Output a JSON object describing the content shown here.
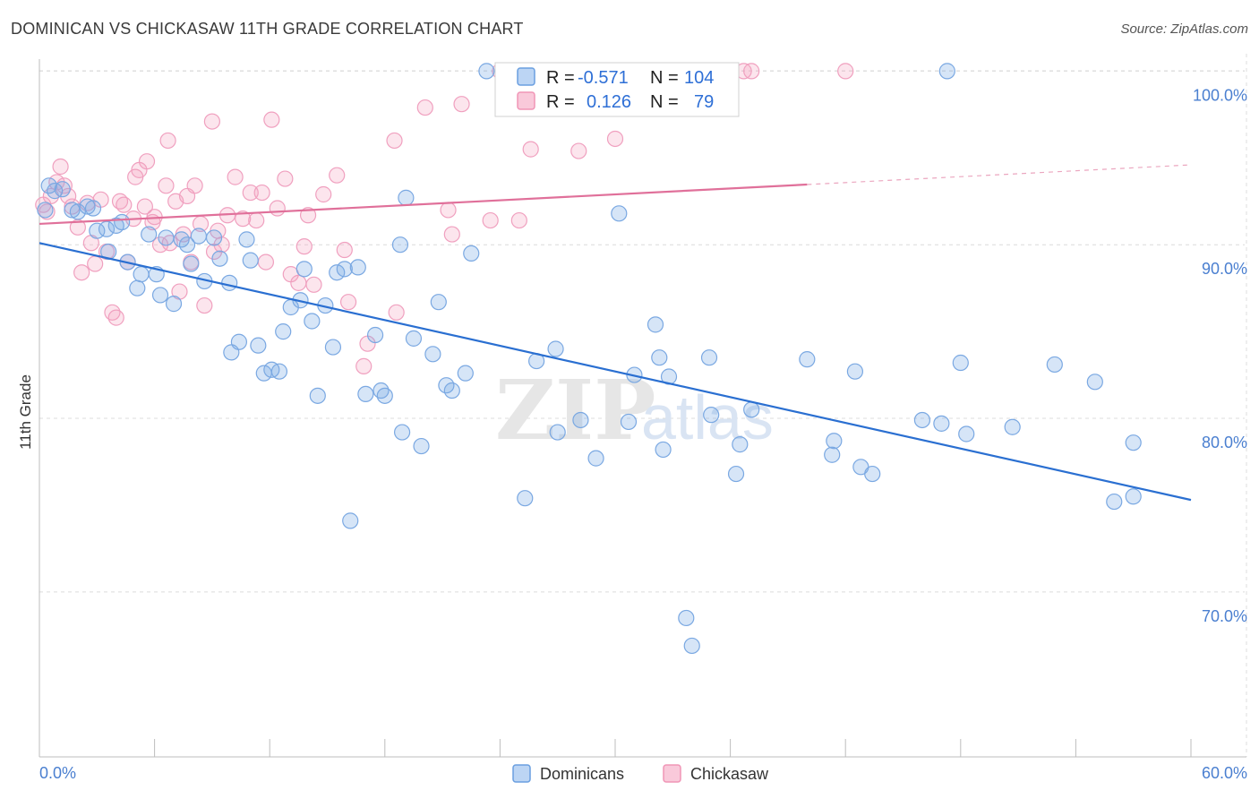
{
  "title": "DOMINICAN VS CHICKASAW 11TH GRADE CORRELATION CHART",
  "source": "Source: ZipAtlas.com",
  "watermark": {
    "zip": "ZIP",
    "atlas": "atlas"
  },
  "colors": {
    "blue": "#5b9be0",
    "pink": "#f08cb0",
    "blue_line": "#2a6fd1",
    "pink_line": "#e0709a",
    "tick": "#4a7fd0"
  },
  "legend_box": {
    "rows": [
      {
        "r_label": "R =",
        "r_value": "-0.571",
        "n_label": "N =",
        "n_value": "104"
      },
      {
        "r_label": "R =",
        "r_value": "0.126",
        "n_label": "N =",
        "n_value": "79"
      }
    ]
  },
  "chart_data": {
    "type": "scatter",
    "title": "DOMINICAN VS CHICKASAW 11TH GRADE CORRELATION CHART",
    "xlabel": "",
    "ylabel": "11th Grade",
    "xlim": [
      0,
      60
    ],
    "ylim": [
      60.5,
      101
    ],
    "x_tick_labels": [
      "0.0%",
      "60.0%"
    ],
    "y_ticks": [
      70,
      80,
      90,
      100
    ],
    "y_tick_labels": [
      "70.0%",
      "80.0%",
      "90.0%",
      "100.0%"
    ],
    "grid": true,
    "legend_position": "bottom-center",
    "series": [
      {
        "name": "Dominicans",
        "color": "#5b9be0",
        "r": -0.571,
        "n": 104,
        "trend": {
          "x": [
            0,
            60
          ],
          "y": [
            90.1,
            75.3
          ]
        },
        "points": [
          [
            0.3,
            92.0
          ],
          [
            0.5,
            93.4
          ],
          [
            0.8,
            93.1
          ],
          [
            1.2,
            93.2
          ],
          [
            1.7,
            92.0
          ],
          [
            2.0,
            91.9
          ],
          [
            2.5,
            92.2
          ],
          [
            2.8,
            92.1
          ],
          [
            3.0,
            90.8
          ],
          [
            3.5,
            90.9
          ],
          [
            3.6,
            89.6
          ],
          [
            4.0,
            91.1
          ],
          [
            4.3,
            91.3
          ],
          [
            4.6,
            89.0
          ],
          [
            5.1,
            87.5
          ],
          [
            5.3,
            88.3
          ],
          [
            5.7,
            90.6
          ],
          [
            6.1,
            88.3
          ],
          [
            6.3,
            87.1
          ],
          [
            6.6,
            90.4
          ],
          [
            7.0,
            86.6
          ],
          [
            7.4,
            90.3
          ],
          [
            7.7,
            90.0
          ],
          [
            7.9,
            88.9
          ],
          [
            8.3,
            90.5
          ],
          [
            8.6,
            87.9
          ],
          [
            9.1,
            90.4
          ],
          [
            9.4,
            89.2
          ],
          [
            9.9,
            87.8
          ],
          [
            10.0,
            83.8
          ],
          [
            10.4,
            84.4
          ],
          [
            10.8,
            90.3
          ],
          [
            11.0,
            89.1
          ],
          [
            11.4,
            84.2
          ],
          [
            11.7,
            82.6
          ],
          [
            12.1,
            82.8
          ],
          [
            12.5,
            82.7
          ],
          [
            12.7,
            85.0
          ],
          [
            13.1,
            86.4
          ],
          [
            13.6,
            86.8
          ],
          [
            13.8,
            88.6
          ],
          [
            14.2,
            85.6
          ],
          [
            14.5,
            81.3
          ],
          [
            14.9,
            86.5
          ],
          [
            15.3,
            84.1
          ],
          [
            15.5,
            88.4
          ],
          [
            15.9,
            88.6
          ],
          [
            16.2,
            74.1
          ],
          [
            16.6,
            88.7
          ],
          [
            17.0,
            81.4
          ],
          [
            17.5,
            84.8
          ],
          [
            17.8,
            81.6
          ],
          [
            18.0,
            81.3
          ],
          [
            18.8,
            90.0
          ],
          [
            18.9,
            79.2
          ],
          [
            19.1,
            92.7
          ],
          [
            19.5,
            84.6
          ],
          [
            19.9,
            78.4
          ],
          [
            20.5,
            83.7
          ],
          [
            20.8,
            86.7
          ],
          [
            21.2,
            81.9
          ],
          [
            21.5,
            81.6
          ],
          [
            22.2,
            82.6
          ],
          [
            22.5,
            89.5
          ],
          [
            23.3,
            100.0
          ],
          [
            24.3,
            100.0
          ],
          [
            25.3,
            75.4
          ],
          [
            25.9,
            83.3
          ],
          [
            26.9,
            84.0
          ],
          [
            27.0,
            79.2
          ],
          [
            28.2,
            79.9
          ],
          [
            28.7,
            100.0
          ],
          [
            29.0,
            77.7
          ],
          [
            30.2,
            91.8
          ],
          [
            30.7,
            79.8
          ],
          [
            31.0,
            82.5
          ],
          [
            32.1,
            85.4
          ],
          [
            32.3,
            83.5
          ],
          [
            32.5,
            78.2
          ],
          [
            32.8,
            82.4
          ],
          [
            33.7,
            68.5
          ],
          [
            34.0,
            66.9
          ],
          [
            34.9,
            83.5
          ],
          [
            35.0,
            80.2
          ],
          [
            36.3,
            76.8
          ],
          [
            36.5,
            78.5
          ],
          [
            37.1,
            80.5
          ],
          [
            40.0,
            83.4
          ],
          [
            41.3,
            77.9
          ],
          [
            41.4,
            78.7
          ],
          [
            42.5,
            82.7
          ],
          [
            42.8,
            77.2
          ],
          [
            43.4,
            76.8
          ],
          [
            46.0,
            79.9
          ],
          [
            47.0,
            79.7
          ],
          [
            47.3,
            100.0
          ],
          [
            48.0,
            83.2
          ],
          [
            48.3,
            79.1
          ],
          [
            50.7,
            79.5
          ],
          [
            52.9,
            83.1
          ],
          [
            55.0,
            82.1
          ],
          [
            56.0,
            75.2
          ],
          [
            57.0,
            78.6
          ],
          [
            63.0,
            75.5
          ]
        ]
      },
      {
        "name": "Chickasaw",
        "color": "#f08cb0",
        "r": 0.126,
        "n": 79,
        "trend": {
          "x": [
            0,
            60
          ],
          "y": [
            91.2,
            94.6
          ]
        },
        "points": [
          [
            0.2,
            92.3
          ],
          [
            0.4,
            91.9
          ],
          [
            0.6,
            92.8
          ],
          [
            0.9,
            93.6
          ],
          [
            1.1,
            94.5
          ],
          [
            1.3,
            93.4
          ],
          [
            1.5,
            92.8
          ],
          [
            1.7,
            92.2
          ],
          [
            2.0,
            91.0
          ],
          [
            2.2,
            88.4
          ],
          [
            2.5,
            92.4
          ],
          [
            2.7,
            90.1
          ],
          [
            2.9,
            88.9
          ],
          [
            3.2,
            92.6
          ],
          [
            3.5,
            89.6
          ],
          [
            3.8,
            86.1
          ],
          [
            4.0,
            85.8
          ],
          [
            4.2,
            92.5
          ],
          [
            4.4,
            92.3
          ],
          [
            4.6,
            89.0
          ],
          [
            4.9,
            91.5
          ],
          [
            5.0,
            93.9
          ],
          [
            5.2,
            94.3
          ],
          [
            5.5,
            92.2
          ],
          [
            5.6,
            94.8
          ],
          [
            5.9,
            91.3
          ],
          [
            6.0,
            91.6
          ],
          [
            6.3,
            90.0
          ],
          [
            6.6,
            93.4
          ],
          [
            6.7,
            96.0
          ],
          [
            6.8,
            90.1
          ],
          [
            7.1,
            92.5
          ],
          [
            7.3,
            87.3
          ],
          [
            7.5,
            90.6
          ],
          [
            7.7,
            92.8
          ],
          [
            7.9,
            89.0
          ],
          [
            8.1,
            93.4
          ],
          [
            8.4,
            91.2
          ],
          [
            8.6,
            86.5
          ],
          [
            9.0,
            97.1
          ],
          [
            9.1,
            89.6
          ],
          [
            9.3,
            90.8
          ],
          [
            9.5,
            90.0
          ],
          [
            9.8,
            91.7
          ],
          [
            10.2,
            93.9
          ],
          [
            10.6,
            91.5
          ],
          [
            11.0,
            93.0
          ],
          [
            11.3,
            91.4
          ],
          [
            11.6,
            93.0
          ],
          [
            11.8,
            89.0
          ],
          [
            12.1,
            97.2
          ],
          [
            12.4,
            92.1
          ],
          [
            12.8,
            93.8
          ],
          [
            13.1,
            88.3
          ],
          [
            13.5,
            87.8
          ],
          [
            13.8,
            89.9
          ],
          [
            14.0,
            91.7
          ],
          [
            14.3,
            87.7
          ],
          [
            14.8,
            92.9
          ],
          [
            15.5,
            94.0
          ],
          [
            15.9,
            89.7
          ],
          [
            16.1,
            86.7
          ],
          [
            16.9,
            83.0
          ],
          [
            17.1,
            84.3
          ],
          [
            18.5,
            96.0
          ],
          [
            18.6,
            86.1
          ],
          [
            20.1,
            97.9
          ],
          [
            21.3,
            92.0
          ],
          [
            21.5,
            90.6
          ],
          [
            22.0,
            98.1
          ],
          [
            23.5,
            91.4
          ],
          [
            24.0,
            100.0
          ],
          [
            25.0,
            91.4
          ],
          [
            25.6,
            95.5
          ],
          [
            28.1,
            95.4
          ],
          [
            30.0,
            96.1
          ],
          [
            36.7,
            100.0
          ],
          [
            37.1,
            100.0
          ],
          [
            42.0,
            100.0
          ]
        ]
      }
    ]
  },
  "bottom_legend": [
    {
      "label": "Dominicans",
      "color": "#5b9be0"
    },
    {
      "label": "Chickasaw",
      "color": "#f08cb0"
    }
  ]
}
